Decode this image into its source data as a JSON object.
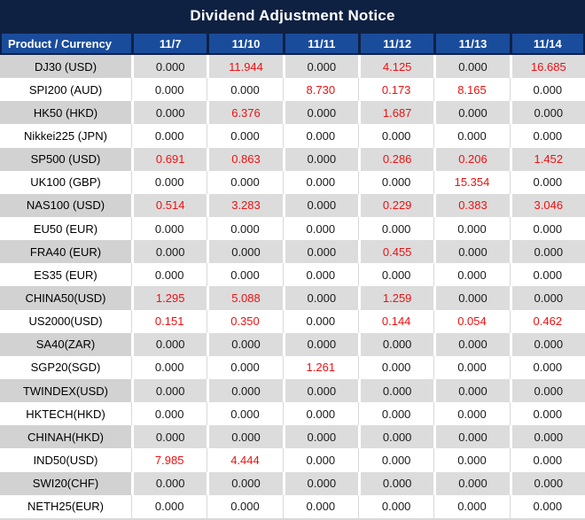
{
  "title": "Dividend Adjustment Notice",
  "colors": {
    "title_bg": "#0F2143",
    "header_bg": "#1A4C9C",
    "header_text": "#FFFFFF",
    "row_alt_product_bg": "#D2D2D2",
    "row_alt_value_bg": "#DCDCDC",
    "value_text": "#1A1A1A",
    "red_value": "#ED1111",
    "grid_line": "#D9D9D9"
  },
  "chart_data": {
    "type": "table",
    "title": "Dividend Adjustment Notice",
    "columns": [
      "Product / Currency",
      "11/7",
      "11/10",
      "11/11",
      "11/12",
      "11/13",
      "11/14"
    ],
    "red_note": "non-zero dividend adjustment values are shown in red",
    "rows": [
      {
        "product": "DJ30 (USD)",
        "values": [
          "0.000",
          "11.944",
          "0.000",
          "4.125",
          "0.000",
          "16.685"
        ],
        "red": [
          false,
          true,
          false,
          true,
          false,
          true
        ]
      },
      {
        "product": "SPI200 (AUD)",
        "values": [
          "0.000",
          "0.000",
          "8.730",
          "0.173",
          "8.165",
          "0.000"
        ],
        "red": [
          false,
          false,
          true,
          true,
          true,
          false
        ]
      },
      {
        "product": "HK50 (HKD)",
        "values": [
          "0.000",
          "6.376",
          "0.000",
          "1.687",
          "0.000",
          "0.000"
        ],
        "red": [
          false,
          true,
          false,
          true,
          false,
          false
        ]
      },
      {
        "product": "Nikkei225 (JPN)",
        "values": [
          "0.000",
          "0.000",
          "0.000",
          "0.000",
          "0.000",
          "0.000"
        ],
        "red": [
          false,
          false,
          false,
          false,
          false,
          false
        ]
      },
      {
        "product": "SP500 (USD)",
        "values": [
          "0.691",
          "0.863",
          "0.000",
          "0.286",
          "0.206",
          "1.452"
        ],
        "red": [
          true,
          true,
          false,
          true,
          true,
          true
        ]
      },
      {
        "product": "UK100 (GBP)",
        "values": [
          "0.000",
          "0.000",
          "0.000",
          "0.000",
          "15.354",
          "0.000"
        ],
        "red": [
          false,
          false,
          false,
          false,
          true,
          false
        ]
      },
      {
        "product": "NAS100 (USD)",
        "values": [
          "0.514",
          "3.283",
          "0.000",
          "0.229",
          "0.383",
          "3.046"
        ],
        "red": [
          true,
          true,
          false,
          true,
          true,
          true
        ]
      },
      {
        "product": "EU50 (EUR)",
        "values": [
          "0.000",
          "0.000",
          "0.000",
          "0.000",
          "0.000",
          "0.000"
        ],
        "red": [
          false,
          false,
          false,
          false,
          false,
          false
        ]
      },
      {
        "product": "FRA40 (EUR)",
        "values": [
          "0.000",
          "0.000",
          "0.000",
          "0.455",
          "0.000",
          "0.000"
        ],
        "red": [
          false,
          false,
          false,
          true,
          false,
          false
        ]
      },
      {
        "product": "ES35 (EUR)",
        "values": [
          "0.000",
          "0.000",
          "0.000",
          "0.000",
          "0.000",
          "0.000"
        ],
        "red": [
          false,
          false,
          false,
          false,
          false,
          false
        ]
      },
      {
        "product": "CHINA50(USD)",
        "values": [
          "1.295",
          "5.088",
          "0.000",
          "1.259",
          "0.000",
          "0.000"
        ],
        "red": [
          true,
          true,
          false,
          true,
          false,
          false
        ]
      },
      {
        "product": "US2000(USD)",
        "values": [
          "0.151",
          "0.350",
          "0.000",
          "0.144",
          "0.054",
          "0.462"
        ],
        "red": [
          true,
          true,
          false,
          true,
          true,
          true
        ]
      },
      {
        "product": "SA40(ZAR)",
        "values": [
          "0.000",
          "0.000",
          "0.000",
          "0.000",
          "0.000",
          "0.000"
        ],
        "red": [
          false,
          false,
          false,
          false,
          false,
          false
        ]
      },
      {
        "product": "SGP20(SGD)",
        "values": [
          "0.000",
          "0.000",
          "1.261",
          "0.000",
          "0.000",
          "0.000"
        ],
        "red": [
          false,
          false,
          true,
          false,
          false,
          false
        ]
      },
      {
        "product": "TWINDEX(USD)",
        "values": [
          "0.000",
          "0.000",
          "0.000",
          "0.000",
          "0.000",
          "0.000"
        ],
        "red": [
          false,
          false,
          false,
          false,
          false,
          false
        ]
      },
      {
        "product": "HKTECH(HKD)",
        "values": [
          "0.000",
          "0.000",
          "0.000",
          "0.000",
          "0.000",
          "0.000"
        ],
        "red": [
          false,
          false,
          false,
          false,
          false,
          false
        ]
      },
      {
        "product": "CHINAH(HKD)",
        "values": [
          "0.000",
          "0.000",
          "0.000",
          "0.000",
          "0.000",
          "0.000"
        ],
        "red": [
          false,
          false,
          false,
          false,
          false,
          false
        ]
      },
      {
        "product": "IND50(USD)",
        "values": [
          "7.985",
          "4.444",
          "0.000",
          "0.000",
          "0.000",
          "0.000"
        ],
        "red": [
          true,
          true,
          false,
          false,
          false,
          false
        ]
      },
      {
        "product": "SWI20(CHF)",
        "values": [
          "0.000",
          "0.000",
          "0.000",
          "0.000",
          "0.000",
          "0.000"
        ],
        "red": [
          false,
          false,
          false,
          false,
          false,
          false
        ]
      },
      {
        "product": "NETH25(EUR)",
        "values": [
          "0.000",
          "0.000",
          "0.000",
          "0.000",
          "0.000",
          "0.000"
        ],
        "red": [
          false,
          false,
          false,
          false,
          false,
          false
        ]
      }
    ]
  }
}
